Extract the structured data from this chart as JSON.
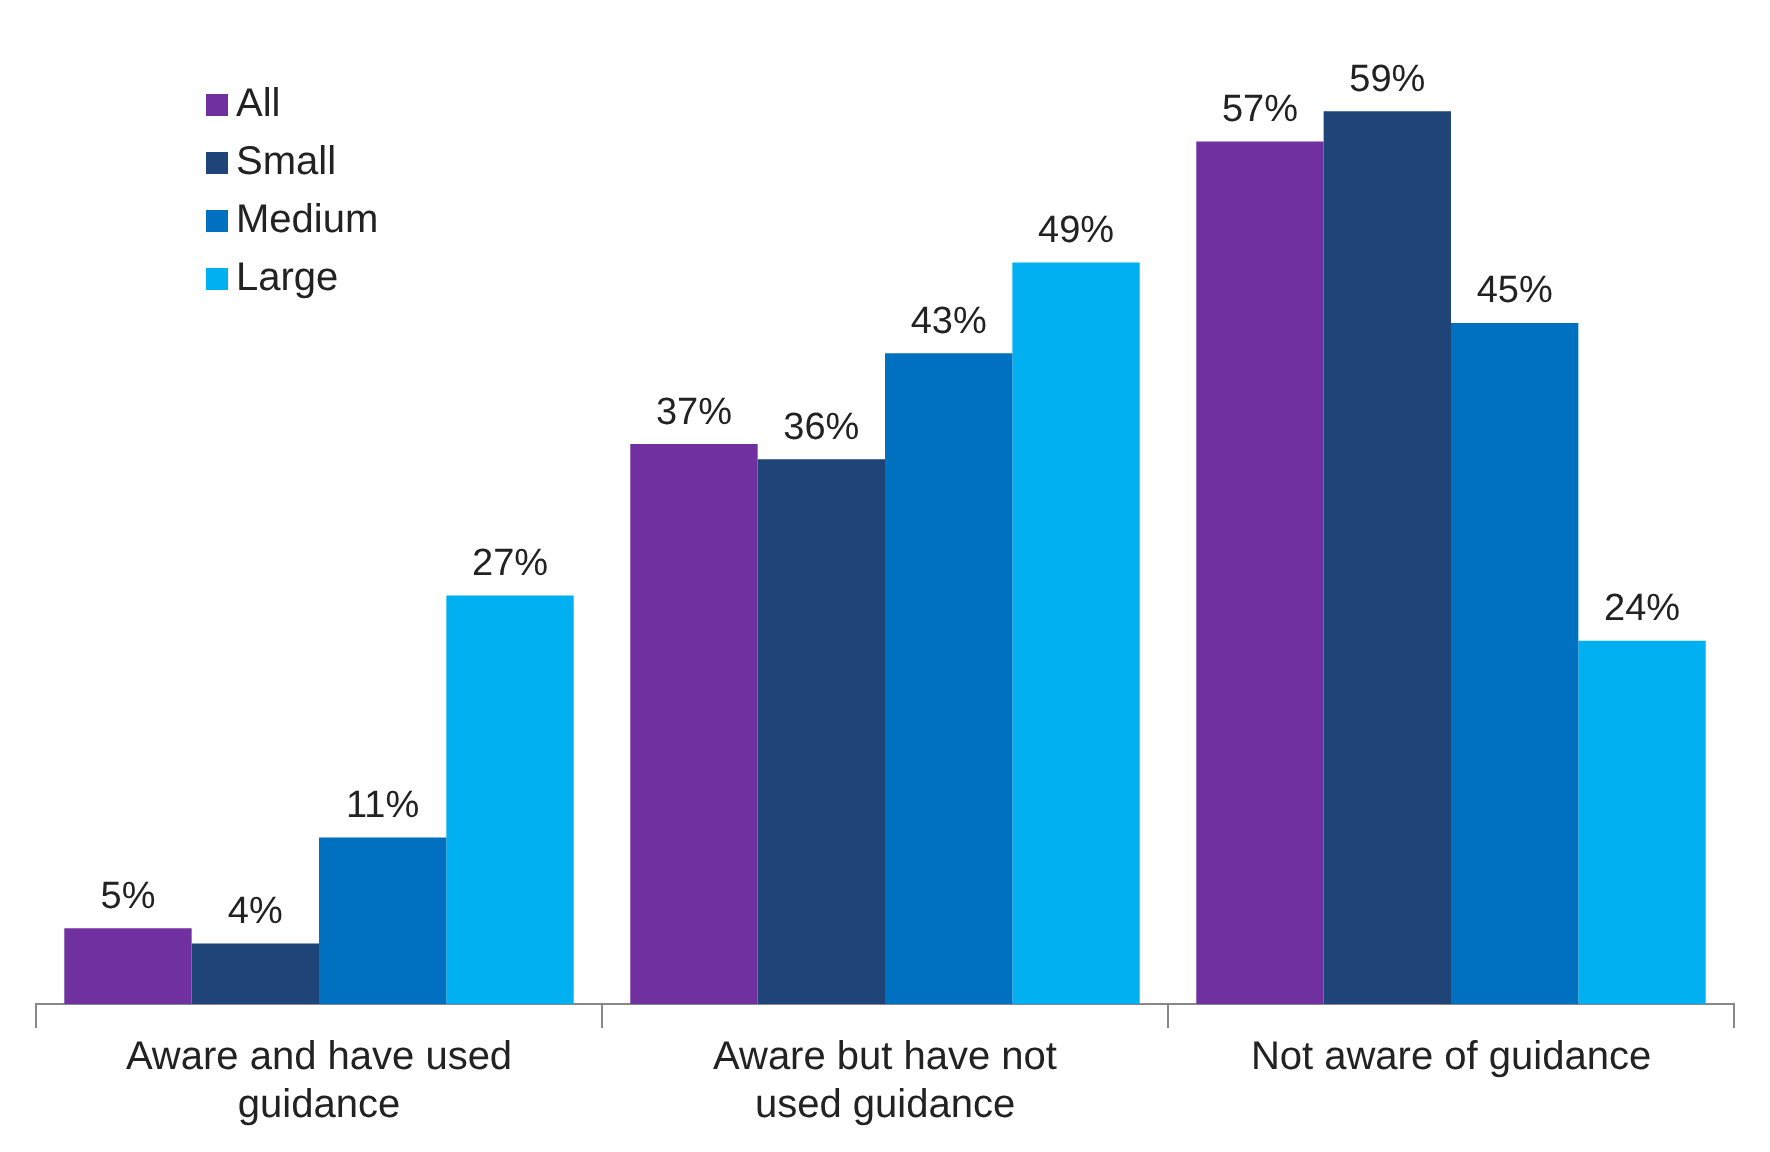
{
  "chart_data": {
    "type": "bar",
    "categories": [
      "Aware and have used guidance",
      "Aware but have not used guidance",
      "Not aware of guidance"
    ],
    "series": [
      {
        "name": "All",
        "color": "#7030a0",
        "values": [
          5,
          37,
          57
        ],
        "value_labels": [
          "5%",
          "37%",
          "57%"
        ]
      },
      {
        "name": "Small",
        "color": "#1f4478",
        "values": [
          4,
          36,
          59
        ],
        "value_labels": [
          "4%",
          "36%",
          "59%"
        ]
      },
      {
        "name": "Medium",
        "color": "#0070c0",
        "values": [
          11,
          43,
          45
        ],
        "value_labels": [
          "11%",
          "43%",
          "45%"
        ]
      },
      {
        "name": "Large",
        "color": "#00b0f0",
        "values": [
          27,
          49,
          24
        ],
        "value_labels": [
          "27%",
          "49%",
          "24%"
        ]
      }
    ],
    "legend": "top left",
    "grid": false,
    "tick_labels": "x"
  }
}
